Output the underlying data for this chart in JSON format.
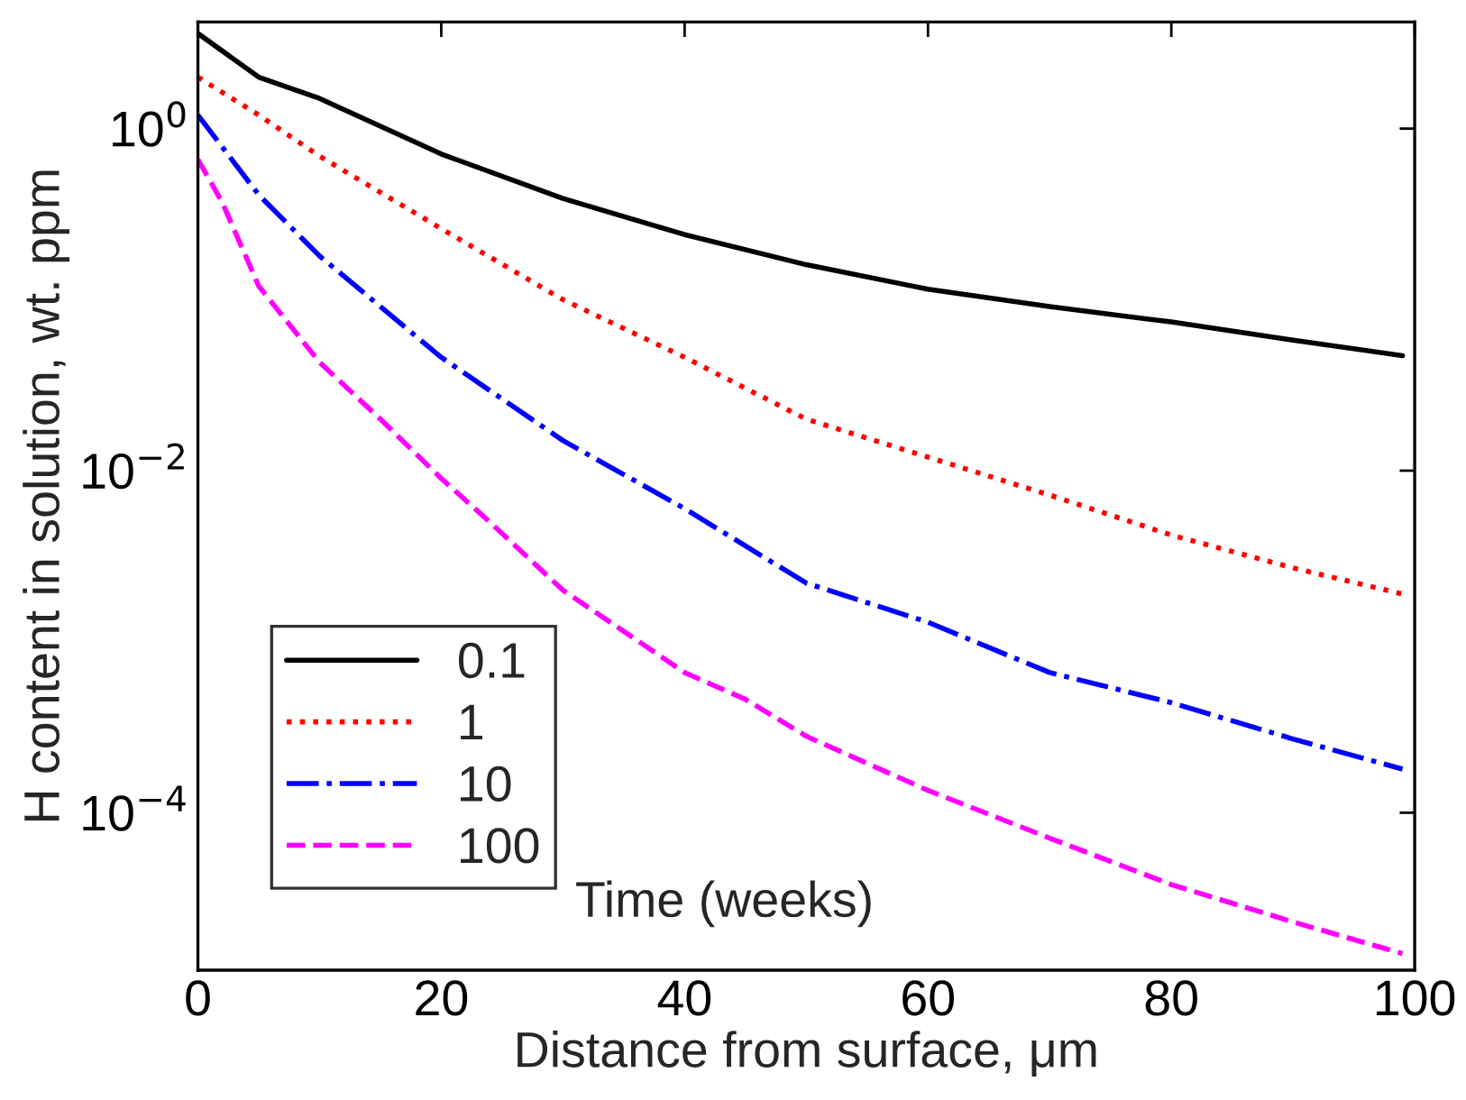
{
  "chart_data": {
    "type": "line",
    "xlabel": "Distance from surface, μm",
    "ylabel": "H content in solution, wt. ppm",
    "log": "y",
    "grid": false,
    "legend": "bottom left",
    "xlim": [
      0,
      100
    ],
    "xticks": [
      0,
      20,
      40,
      60,
      80,
      100
    ],
    "ylim": [
      1.2e-05,
      4.2
    ],
    "yticks": [
      {
        "value": 1,
        "label": "10$^{0}$"
      },
      {
        "value": 0.01,
        "label": "10$^{−2}$"
      },
      {
        "value": 0.0001,
        "label": "10$^{−4}$"
      }
    ],
    "annotations": [
      "Time (weeks)"
    ],
    "series": [
      {
        "name": "0.1",
        "color": "#000000",
        "line_style": "solid",
        "x": [
          0,
          5,
          10,
          20,
          30,
          40,
          50,
          60,
          70,
          80,
          90,
          99
        ],
        "values": [
          3.6,
          2.0,
          1.5,
          0.71,
          0.39,
          0.24,
          0.16,
          0.115,
          0.091,
          0.074,
          0.058,
          0.047
        ]
      },
      {
        "name": "1",
        "color": "#ff0000",
        "line_style": "dotted",
        "x": [
          0,
          5,
          10,
          20,
          30,
          40,
          50,
          60,
          70,
          80,
          90,
          99
        ],
        "values": [
          2.0,
          1.2,
          0.69,
          0.26,
          0.1,
          0.046,
          0.02,
          0.012,
          0.0072,
          0.0042,
          0.0027,
          0.0019
        ]
      },
      {
        "name": "10",
        "color": "#0000ff",
        "line_style": "dashdot",
        "x": [
          0,
          5,
          10,
          20,
          30,
          40,
          50,
          60,
          70,
          80,
          90,
          99
        ],
        "values": [
          1.2,
          0.41,
          0.18,
          0.046,
          0.015,
          0.006,
          0.0022,
          0.0013,
          0.00066,
          0.00044,
          0.00027,
          0.00018
        ]
      },
      {
        "name": "100",
        "color": "#ff00ff",
        "line_style": "dashed",
        "x": [
          0,
          2,
          5,
          10,
          15,
          20,
          24,
          30,
          40,
          45,
          50,
          60,
          70,
          80,
          90,
          99
        ],
        "values": [
          0.66,
          0.37,
          0.12,
          0.043,
          0.02,
          0.009,
          0.005,
          0.002,
          0.00066,
          0.00046,
          0.00028,
          0.000135,
          7.1e-05,
          3.8e-05,
          2.3e-05,
          1.5e-05
        ]
      }
    ]
  }
}
